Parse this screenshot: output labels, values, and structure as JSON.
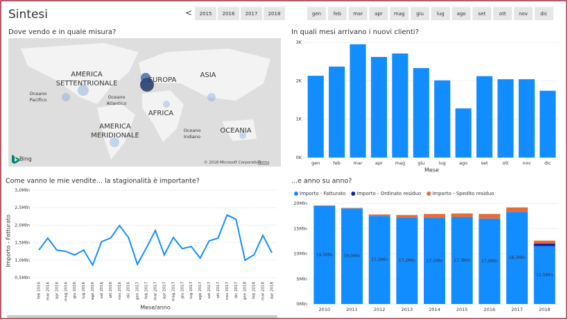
{
  "header": {
    "title": "Sintesi",
    "prev": "<"
  },
  "years": [
    "2015",
    "2016",
    "2017",
    "2018"
  ],
  "months": [
    "gen",
    "feb",
    "mar",
    "apr",
    "mag",
    "giu",
    "lug",
    "ago",
    "set",
    "ott",
    "nov",
    "dic"
  ],
  "map": {
    "title": "Dove vendo e in quale misura?",
    "regions": [
      [
        "AMERICA",
        "SETTENTRIONALE"
      ],
      [
        "EUROPA"
      ],
      [
        "ASIA"
      ],
      [
        "AFRICA"
      ],
      [
        "AMERICA",
        "MERIDIONALE"
      ],
      [
        "OCEANIA"
      ]
    ],
    "oceans": [
      [
        "Oceano",
        "Pacifico"
      ],
      [
        "Oceano",
        "Atlantico"
      ],
      [
        "Oceano",
        "Indiano"
      ]
    ],
    "provider": "Bing",
    "copyright": "© 2018 Microsoft Corporation",
    "terms": "Terms"
  },
  "chart_data": [
    {
      "type": "bar",
      "title": "In quali mesi arrivano i nuovi clienti?",
      "x_label": "Mese",
      "categories": [
        "gen",
        "feb",
        "mar",
        "apr",
        "mag",
        "giu",
        "lug",
        "ago",
        "set",
        "ott",
        "nov",
        "dic"
      ],
      "values": [
        2.13,
        2.37,
        2.95,
        2.62,
        2.71,
        2.33,
        2.01,
        1.28,
        2.12,
        2.04,
        2.04,
        1.74
      ],
      "color": "#118dff",
      "ylim": [
        0,
        3
      ],
      "yticks": [
        {
          "value": 0,
          "label": "0K"
        },
        {
          "value": 1,
          "label": "1K"
        },
        {
          "value": 2,
          "label": "2K"
        },
        {
          "value": 3,
          "label": "3K"
        }
      ],
      "grid": true
    },
    {
      "type": "line",
      "title": "Come vanno le mie vendite... la stagionalità è importante?",
      "x_label": "Mese/anno",
      "y_label": "Importo - Fatturato",
      "categories": [
        "feb 2016",
        "mar 2016",
        "apr 2016",
        "mag 2016",
        "giu 2016",
        "lug 2016",
        "ago 2016",
        "set 2016",
        "ott 2016",
        "nov 2016",
        "dic 2016",
        "gen 2017",
        "feb 2017",
        "mar 2017",
        "apr 2017",
        "mag 2017",
        "giu 2017",
        "lug 2017",
        "ago 2017",
        "set 2017",
        "ott 2017",
        "nov 2017",
        "dic 2017",
        "gen 2018",
        "feb 2018",
        "mar 2018",
        "apr 2018"
      ],
      "values": [
        1.29,
        1.63,
        1.29,
        1.25,
        1.15,
        1.29,
        0.86,
        1.53,
        1.63,
        1.99,
        1.65,
        0.88,
        1.35,
        1.85,
        1.15,
        1.65,
        1.33,
        1.39,
        1.06,
        1.55,
        1.63,
        2.29,
        2.17,
        1.0,
        1.15,
        1.71,
        1.21
      ],
      "color": "#118dff",
      "ylim": [
        0.5,
        3.0
      ],
      "yticks": [
        {
          "value": 0.5,
          "label": "0,5Mln"
        },
        {
          "value": 1.0,
          "label": "1,0Mln"
        },
        {
          "value": 1.5,
          "label": "1,5Mln"
        },
        {
          "value": 2.0,
          "label": "2,0Mln"
        },
        {
          "value": 2.5,
          "label": "2,5Mln"
        },
        {
          "value": 3.0,
          "label": "3,0Mln"
        }
      ],
      "grid": true
    },
    {
      "type": "stacked_bar",
      "title": "...e anno su anno?",
      "categories": [
        "2010",
        "2011",
        "2012",
        "2013",
        "2014",
        "2015",
        "2016",
        "2017",
        "2018"
      ],
      "series": [
        {
          "name": "Importo - Fatturato",
          "color": "#118dff",
          "values": [
            19.5,
            19.0,
            17.5,
            17.2,
            17.1,
            17.3,
            17.0,
            18.3,
            11.5
          ],
          "value_labels": [
            "19,5Mln",
            "19,0Mln",
            "17,5Mln",
            "17,2Mln",
            "17,1Mln",
            "17,3Mln",
            "17,0Mln",
            "18,3Mln",
            "11,5Mln"
          ]
        },
        {
          "name": "Importo - Ordinato residuo",
          "color": "#12239e",
          "values": [
            0,
            0,
            0,
            0,
            0,
            0,
            0,
            0,
            0.5
          ]
        },
        {
          "name": "Importo - Spedito residuo",
          "color": "#e66c37",
          "values": [
            0.1,
            0.1,
            0.3,
            0.5,
            0.8,
            0.7,
            0.9,
            0.9,
            0.6
          ]
        }
      ],
      "ylim": [
        0,
        20
      ],
      "yticks": [
        {
          "value": 0,
          "label": "0Mln"
        },
        {
          "value": 5,
          "label": "5Mln"
        },
        {
          "value": 10,
          "label": "10Mln"
        },
        {
          "value": 15,
          "label": "15Mln"
        },
        {
          "value": 20,
          "label": "20Mln"
        }
      ],
      "grid": true,
      "legend": "top"
    }
  ]
}
